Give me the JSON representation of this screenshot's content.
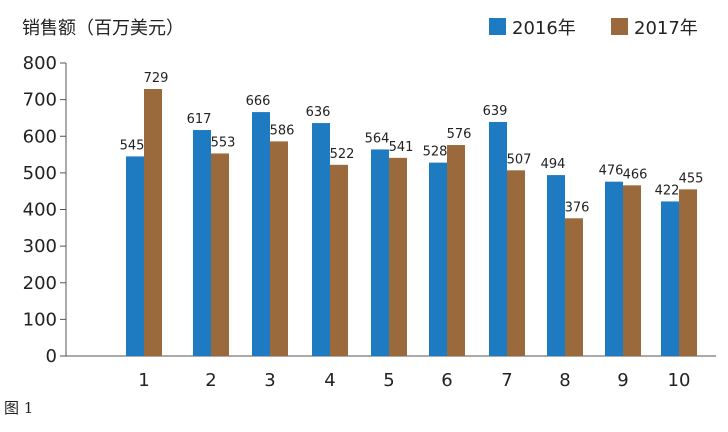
{
  "chart_data": {
    "type": "bar",
    "ylabel": "销售额（百万美元）",
    "categories": [
      "1",
      "2",
      "3",
      "4",
      "5",
      "6",
      "7",
      "8",
      "9",
      "10"
    ],
    "series": [
      {
        "name": "2016年",
        "color": "#1f7bc1",
        "values": [
          545,
          617,
          666,
          636,
          564,
          528,
          639,
          494,
          476,
          422
        ]
      },
      {
        "name": "2017年",
        "color": "#9b6a3c",
        "values": [
          729,
          553,
          586,
          522,
          541,
          576,
          507,
          376,
          466,
          455
        ]
      }
    ],
    "yticks": [
      "0",
      "100",
      "200",
      "300",
      "400",
      "500",
      "600",
      "700",
      "800"
    ],
    "ylim": [
      0,
      800
    ],
    "legend": "top-right",
    "grid": false
  },
  "caption": "图 1"
}
